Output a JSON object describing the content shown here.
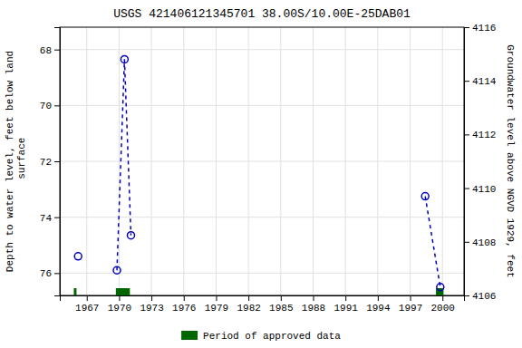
{
  "chart_data": {
    "type": "scatter",
    "title": "USGS 421406121345701 38.00S/10.00E-25DAB01",
    "ylabel": "Depth to water level, feet below land\n surface",
    "y2label": "Groundwater level above NGVD 1929, feet",
    "xlim": [
      1964.5,
      2002.0
    ],
    "xticks": [
      1967,
      1970,
      1973,
      1976,
      1979,
      1982,
      1985,
      1988,
      1991,
      1994,
      1997,
      2000
    ],
    "ylim": [
      76.8,
      67.2
    ],
    "yticks": [
      68,
      70,
      72,
      74,
      76
    ],
    "y2lim": [
      4106,
      4116
    ],
    "y2ticks": [
      4106,
      4108,
      4110,
      4112,
      4114,
      4116
    ],
    "grid": true,
    "legend": "bottom",
    "series": [
      {
        "type": "scatter",
        "marker": "circle",
        "color": "#0000bb",
        "x": [
          1966.2,
          1969.8,
          1970.5,
          1971.1,
          1998.4,
          1999.8
        ],
        "values": [
          75.4,
          75.9,
          68.35,
          74.65,
          73.25,
          76.5
        ]
      },
      {
        "type": "line",
        "line_style": "dashed",
        "color": "#0000bb",
        "x": [
          1969.8,
          1970.5
        ],
        "values": [
          75.9,
          68.35
        ]
      },
      {
        "type": "line",
        "line_style": "dashed",
        "color": "#0000bb",
        "x": [
          1970.5,
          1971.1
        ],
        "values": [
          68.35,
          74.65
        ]
      },
      {
        "type": "line",
        "line_style": "dashed",
        "color": "#0000bb",
        "x": [
          1998.4,
          1999.8
        ],
        "values": [
          73.25,
          76.5
        ]
      },
      {
        "name": "Period of approved data",
        "type": "span",
        "color": "#006600",
        "x": [
          1965.8,
          1969.7,
          1999.4
        ],
        "widths": [
          0.25,
          1.3,
          0.7
        ]
      }
    ]
  }
}
